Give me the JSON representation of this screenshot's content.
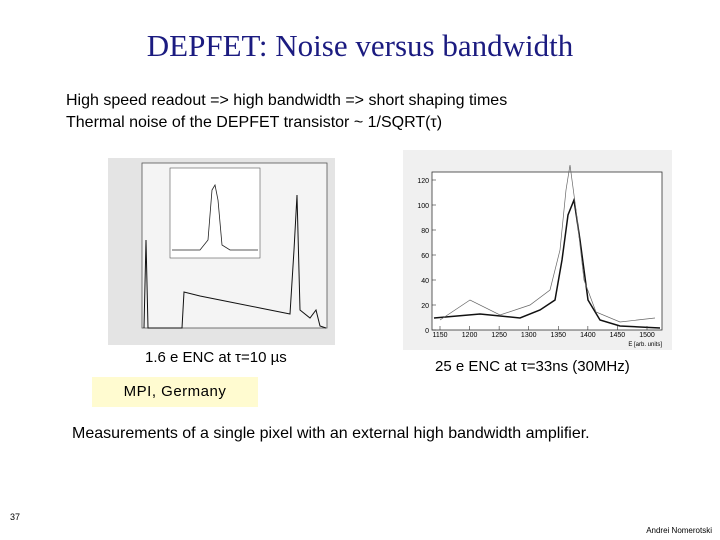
{
  "header": {
    "title": "DEPFET: Noise versus bandwidth"
  },
  "bullets": [
    "High speed readout => high bandwidth => short shaping times",
    "Thermal noise of the DEPFET transistor ~ 1/SQRT(τ)"
  ],
  "figures": {
    "left": {
      "caption": "1.6 e ENC at τ=10 µs"
    },
    "right": {
      "yticks": [
        "0",
        "20",
        "40",
        "60",
        "80",
        "100",
        "120"
      ],
      "xticks": [
        "1150",
        "1200",
        "1250",
        "1300",
        "1350",
        "1400",
        "1450",
        "1500"
      ],
      "xlabel": "E [arb. units]",
      "caption": "25 e ENC at τ=33ns (30MHz)"
    }
  },
  "affiliation": "MPI, Germany",
  "summary": "Measurements of a single pixel with an external  high bandwidth amplifier.",
  "footer": {
    "page": "37",
    "author": "Andrei Nomerotski"
  }
}
